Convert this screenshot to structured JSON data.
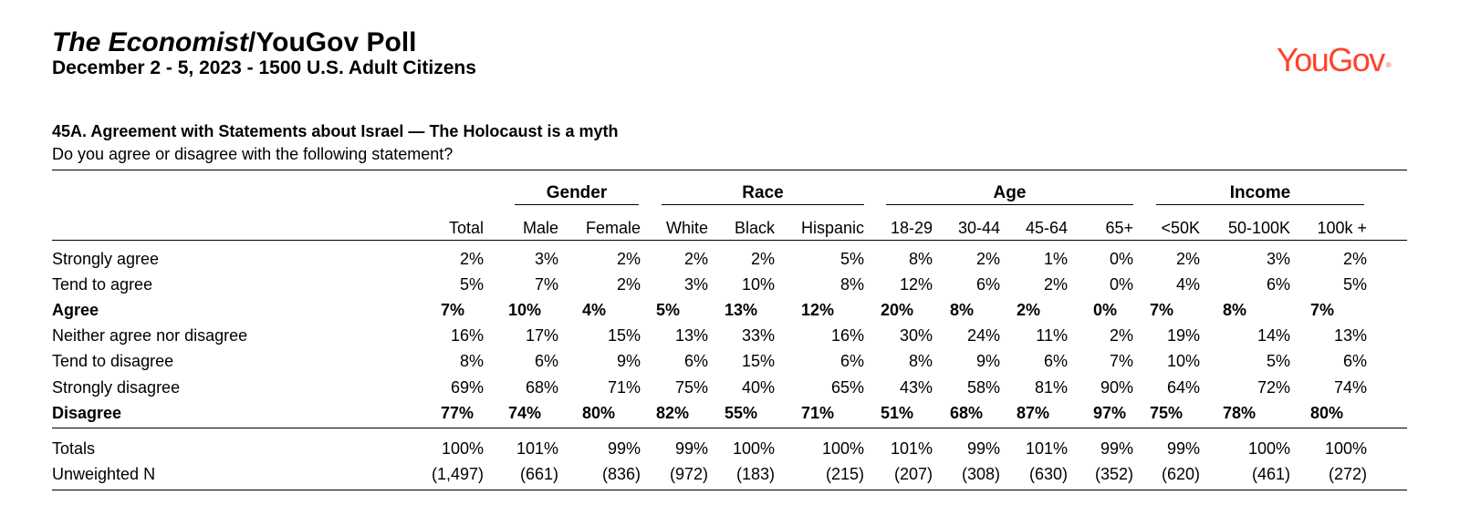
{
  "header": {
    "title_italic": "The Economist",
    "title_rest": "/YouGov Poll",
    "subtitle": "December 2 - 5, 2023 - 1500 U.S. Adult Citizens",
    "logo": "YouGov",
    "logo_mark": "®"
  },
  "question": {
    "title": "45A. Agreement with Statements about Israel — The Holocaust is a myth",
    "text": "Do you agree or disagree with the following statement?"
  },
  "groups": [
    "Gender",
    "Race",
    "Age",
    "Income"
  ],
  "columns": [
    "Total",
    "Male",
    "Female",
    "White",
    "Black",
    "Hispanic",
    "18-29",
    "30-44",
    "45-64",
    "65+",
    "<50K",
    "50-100K",
    "100k +"
  ],
  "rows": [
    {
      "label": "Strongly agree",
      "bold": false,
      "values": [
        "2%",
        "3%",
        "2%",
        "2%",
        "2%",
        "5%",
        "8%",
        "2%",
        "1%",
        "0%",
        "2%",
        "3%",
        "2%"
      ]
    },
    {
      "label": "Tend to agree",
      "bold": false,
      "values": [
        "5%",
        "7%",
        "2%",
        "3%",
        "10%",
        "8%",
        "12%",
        "6%",
        "2%",
        "0%",
        "4%",
        "6%",
        "5%"
      ]
    },
    {
      "label": "Agree",
      "bold": true,
      "values": [
        "7%",
        "10%",
        "4%",
        "5%",
        "13%",
        "12%",
        "20%",
        "8%",
        "2%",
        "0%",
        "7%",
        "8%",
        "7%"
      ]
    },
    {
      "label": "Neither agree nor disagree",
      "bold": false,
      "values": [
        "16%",
        "17%",
        "15%",
        "13%",
        "33%",
        "16%",
        "30%",
        "24%",
        "11%",
        "2%",
        "19%",
        "14%",
        "13%"
      ]
    },
    {
      "label": "Tend to disagree",
      "bold": false,
      "values": [
        "8%",
        "6%",
        "9%",
        "6%",
        "15%",
        "6%",
        "8%",
        "9%",
        "6%",
        "7%",
        "10%",
        "5%",
        "6%"
      ]
    },
    {
      "label": "Strongly disagree",
      "bold": false,
      "values": [
        "69%",
        "68%",
        "71%",
        "75%",
        "40%",
        "65%",
        "43%",
        "58%",
        "81%",
        "90%",
        "64%",
        "72%",
        "74%"
      ]
    },
    {
      "label": "Disagree",
      "bold": true,
      "values": [
        "77%",
        "74%",
        "80%",
        "82%",
        "55%",
        "71%",
        "51%",
        "68%",
        "87%",
        "97%",
        "75%",
        "78%",
        "80%"
      ]
    },
    {
      "label": "Totals",
      "bold": false,
      "values": [
        "100%",
        "101%",
        "99%",
        "99%",
        "100%",
        "100%",
        "101%",
        "99%",
        "101%",
        "99%",
        "99%",
        "100%",
        "100%"
      ]
    },
    {
      "label": "Unweighted N",
      "bold": false,
      "values": [
        "(1,497)",
        "(661)",
        "(836)",
        "(972)",
        "(183)",
        "(215)",
        "(207)",
        "(308)",
        "(630)",
        "(352)",
        "(620)",
        "(461)",
        "(272)"
      ]
    }
  ]
}
